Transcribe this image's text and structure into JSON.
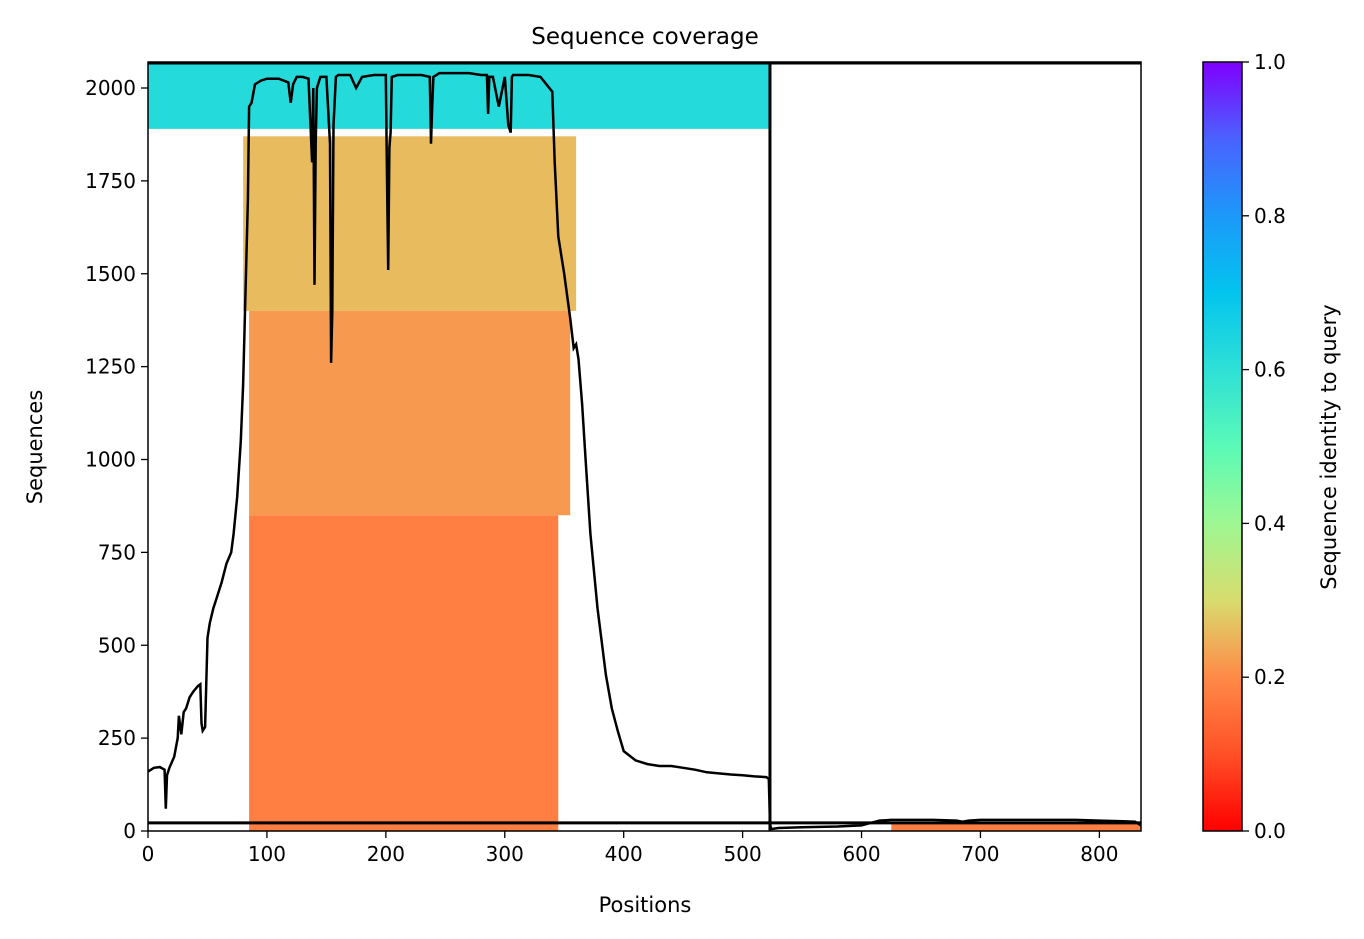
{
  "chart_data": {
    "type": "heatmap",
    "title": "Sequence coverage",
    "xlabel": "Positions",
    "ylabel": "Sequences",
    "xlim": [
      0,
      835
    ],
    "ylim": [
      0,
      2070
    ],
    "x_ticks": [
      "0",
      "100",
      "200",
      "300",
      "400",
      "500",
      "600",
      "700",
      "800"
    ],
    "y_ticks": [
      "0",
      "250",
      "500",
      "750",
      "1000",
      "1250",
      "1500",
      "1750",
      "2000"
    ],
    "x_tick_values": [
      0,
      100,
      200,
      300,
      400,
      500,
      600,
      700,
      800
    ],
    "y_tick_values": [
      0,
      250,
      500,
      750,
      1000,
      1250,
      1500,
      1750,
      2000
    ],
    "chain_breaks": [
      523
    ],
    "horizontal_line_y": 22,
    "colorbar": {
      "label": "Sequence identity to query",
      "colormap": "rainbow_r",
      "range": [
        0,
        1
      ],
      "ticks": [
        "0.0",
        "0.2",
        "0.4",
        "0.6",
        "0.8",
        "1.0"
      ],
      "tick_values": [
        0,
        0.2,
        0.4,
        0.6,
        0.8,
        1.0
      ]
    },
    "coverage_blocks": [
      {
        "y_from": 1890,
        "y_to": 2070,
        "x_from": 0,
        "x_to": 523,
        "identity": 0.62
      },
      {
        "y_from": 1400,
        "y_to": 1870,
        "x_from": 80,
        "x_to": 360,
        "identity": 0.26
      },
      {
        "y_from": 850,
        "y_to": 1400,
        "x_from": 85,
        "x_to": 355,
        "identity": 0.22
      },
      {
        "y_from": 0,
        "y_to": 850,
        "x_from": 85,
        "x_to": 345,
        "identity": 0.18
      },
      {
        "y_from": 0,
        "y_to": 22,
        "x_from": 625,
        "x_to": 835,
        "identity": 0.18
      }
    ],
    "series": [
      {
        "color": "#000000",
        "x": [
          0,
          5,
          10,
          14,
          15,
          16,
          18,
          22,
          25,
          26,
          28,
          30,
          32,
          35,
          38,
          42,
          44,
          45,
          46,
          48,
          50,
          52,
          55,
          58,
          62,
          66,
          70,
          72,
          75,
          78,
          80,
          82,
          84,
          85,
          87,
          90,
          95,
          100,
          110,
          118,
          120,
          122,
          125,
          130,
          135,
          138,
          139,
          140,
          141,
          142,
          145,
          150,
          153,
          154,
          155,
          156,
          158,
          160,
          165,
          170,
          175,
          180,
          190,
          200,
          201,
          202,
          203,
          204,
          205,
          210,
          220,
          230,
          237,
          238,
          239,
          240,
          245,
          250,
          260,
          270,
          280,
          285,
          286,
          287,
          290,
          295,
          300,
          303,
          305,
          306,
          307,
          310,
          315,
          320,
          330,
          335,
          340,
          342,
          345,
          350,
          355,
          358,
          360,
          362,
          365,
          368,
          372,
          378,
          385,
          390,
          395,
          400,
          410,
          420,
          430,
          440,
          450,
          460,
          470,
          480,
          490,
          500,
          510,
          520,
          522,
          523,
          524,
          530,
          550,
          580,
          600,
          615,
          625,
          640,
          660,
          680,
          685,
          690,
          700,
          720,
          750,
          780,
          800,
          820,
          830,
          835
        ],
        "y": [
          160,
          170,
          172,
          165,
          60,
          150,
          170,
          200,
          250,
          310,
          260,
          320,
          330,
          360,
          375,
          390,
          395,
          290,
          270,
          280,
          520,
          560,
          600,
          630,
          670,
          720,
          750,
          800,
          900,
          1050,
          1200,
          1450,
          1700,
          1950,
          1960,
          2010,
          2020,
          2025,
          2025,
          2015,
          1960,
          2010,
          2030,
          2030,
          2025,
          1800,
          2000,
          1470,
          1850,
          2000,
          2030,
          2030,
          1850,
          1260,
          1400,
          1900,
          2030,
          2035,
          2035,
          2035,
          2000,
          2030,
          2035,
          2035,
          1760,
          1510,
          1840,
          1880,
          2030,
          2035,
          2035,
          2035,
          2030,
          1850,
          1950,
          2030,
          2040,
          2040,
          2040,
          2040,
          2035,
          2035,
          1930,
          2030,
          2030,
          1950,
          2030,
          1900,
          1880,
          2030,
          2035,
          2035,
          2035,
          2035,
          2030,
          2010,
          1990,
          1800,
          1600,
          1500,
          1380,
          1300,
          1310,
          1270,
          1150,
          1000,
          800,
          600,
          420,
          330,
          270,
          215,
          190,
          180,
          175,
          175,
          170,
          165,
          158,
          155,
          152,
          150,
          147,
          145,
          140,
          20,
          5,
          8,
          10,
          12,
          15,
          28,
          30,
          30,
          30,
          28,
          25,
          28,
          30,
          30,
          30,
          30,
          28,
          26,
          25,
          15
        ]
      }
    ]
  }
}
